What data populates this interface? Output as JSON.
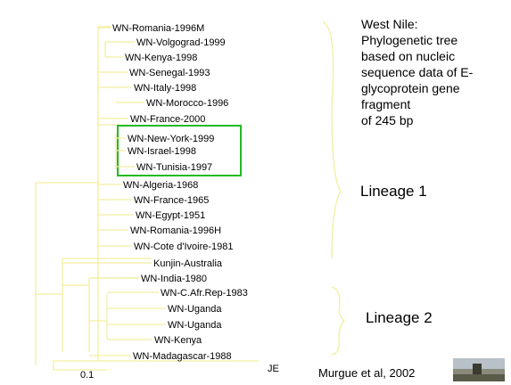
{
  "tree": {
    "leaves": [
      "WN-Romania-1996M",
      "WN-Volgograd-1999",
      "WN-Kenya-1998",
      "WN-Senegal-1993",
      "WN-Italy-1998",
      "WN-Morocco-1996",
      "WN-France-2000",
      "WN-New-York-1999",
      "WN-Israel-1998",
      "WN-Tunisia-1997",
      "WN-Algeria-1968",
      "WN-France-1965",
      "WN-Egypt-1951",
      "WN-Romania-1996H",
      "WN-Cote d'Ivoire-1981",
      "Kunjin-Australia",
      "WN-India-1980",
      "WN-C.Afr.Rep-1983",
      "WN-Uganda",
      "WN-Uganda",
      "WN-Kenya",
      "WN-Madagascar-1988"
    ],
    "outgroup": "JE",
    "scale_label": "0.1"
  },
  "description": [
    "West Nile:",
    "Phylogenetic tree",
    "based on nucleic",
    "sequence data of E-",
    "glycoprotein gene",
    "fragment",
    "of 245 bp"
  ],
  "lineages": [
    "Lineage 1",
    "Lineage 2"
  ],
  "citation": "Murgue et al, 2002"
}
